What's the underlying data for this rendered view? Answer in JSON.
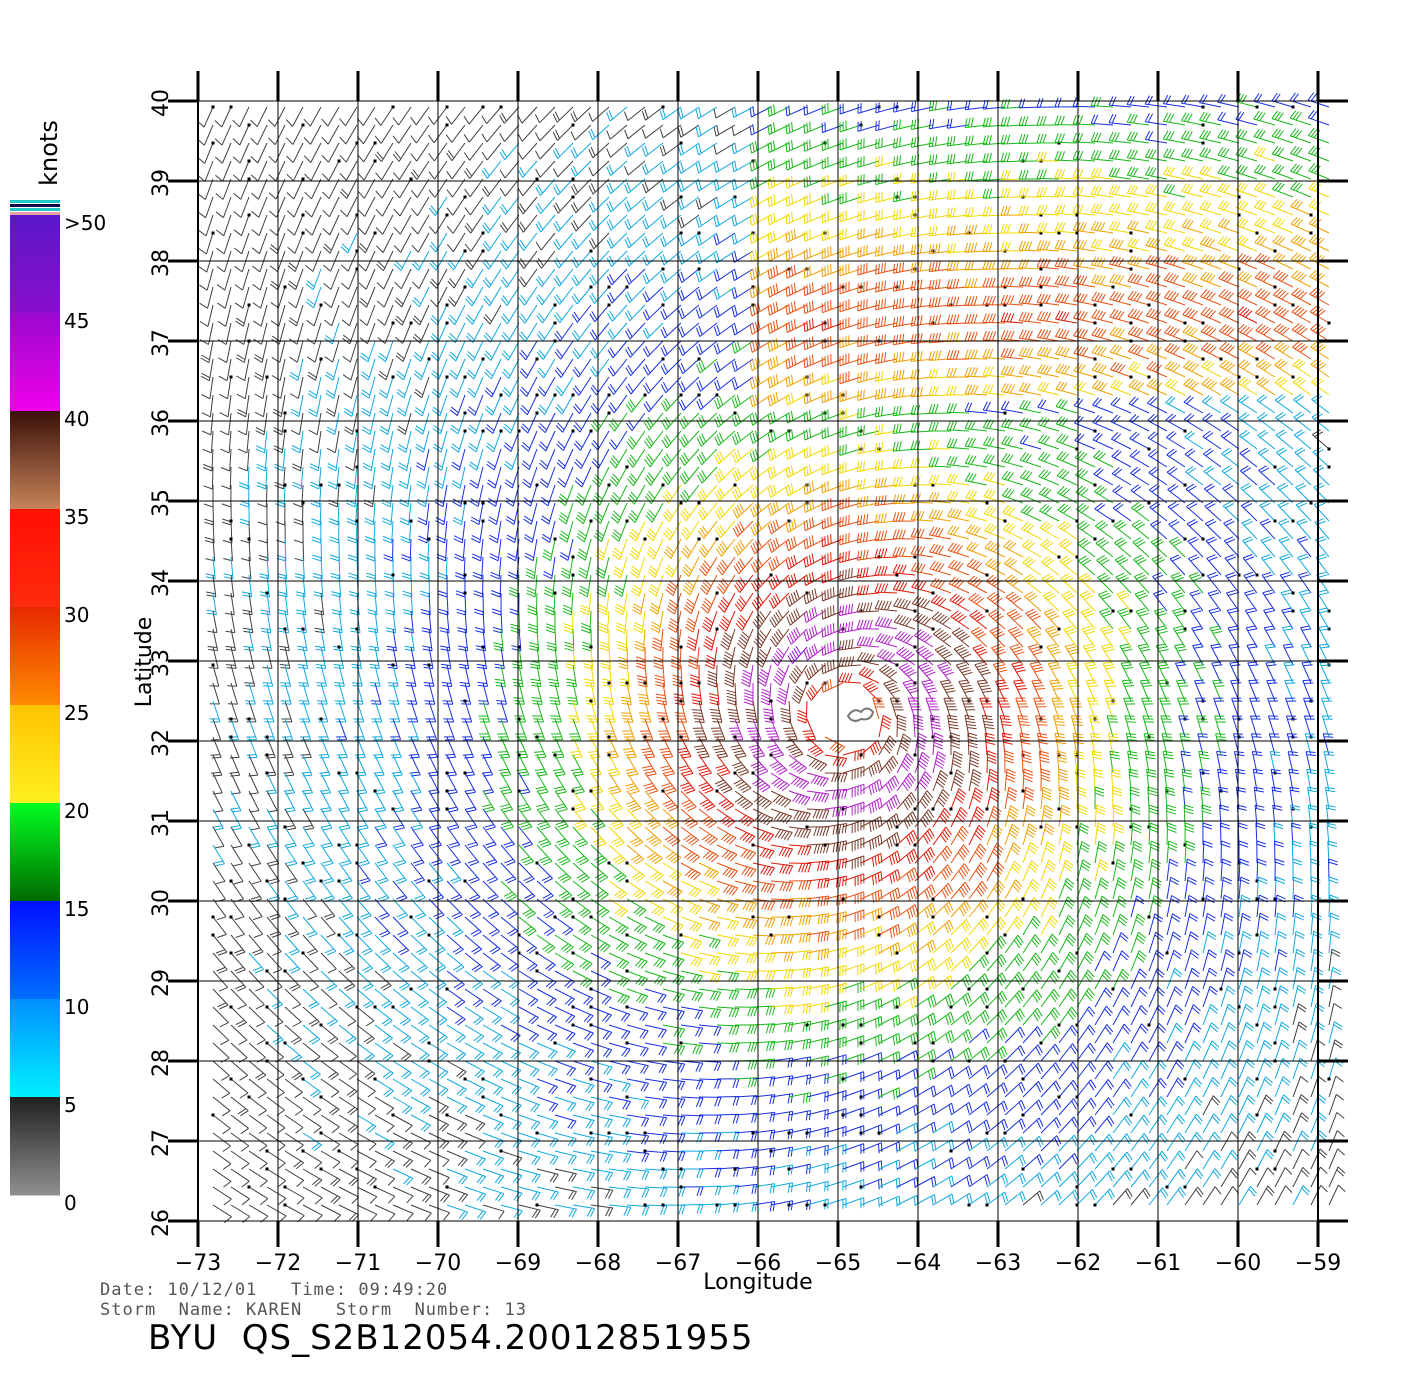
{
  "map": {
    "xlabel": "Longitude",
    "ylabel": "Latitude",
    "lon_range": [
      -73,
      -59
    ],
    "lat_range": [
      26,
      40
    ],
    "lon_ticks": [
      "−73",
      "−72",
      "−71",
      "−70",
      "−69",
      "−68",
      "−67",
      "−66",
      "−65",
      "−64",
      "−63",
      "−62",
      "−61",
      "−60",
      "−59"
    ],
    "lat_ticks": [
      "26",
      "27",
      "28",
      "29",
      "30",
      "31",
      "32",
      "33",
      "34",
      "35",
      "36",
      "37",
      "38",
      "39",
      "40"
    ],
    "grid": true,
    "storm_center": {
      "lon": -64.9,
      "lat": 32.3
    },
    "field": "wind barbs colored by speed"
  },
  "colorbar": {
    "unit": "knots",
    "labels": [
      ">50",
      "45",
      "40",
      "35",
      "30",
      "25",
      "20",
      "15",
      "10",
      "5",
      "0"
    ],
    "bands": [
      {
        "from": 45,
        "to": 50,
        "top": "#5a18c8",
        "bottom": "#8a0ecc"
      },
      {
        "from": 40,
        "to": 45,
        "top": "#9a08d0",
        "bottom": "#f000ea"
      },
      {
        "from": 35,
        "to": 40,
        "top": "#3a1008",
        "bottom": "#c8845a"
      },
      {
        "from": 30,
        "to": 35,
        "top": "#ff1000",
        "bottom": "#ff2a10"
      },
      {
        "from": 25,
        "to": 30,
        "top": "#e82800",
        "bottom": "#ff8c00"
      },
      {
        "from": 20,
        "to": 25,
        "top": "#ffc400",
        "bottom": "#fff020"
      },
      {
        "from": 15,
        "to": 20,
        "top": "#00ff20",
        "bottom": "#006a00"
      },
      {
        "from": 10,
        "to": 15,
        "top": "#0010ff",
        "bottom": "#0070ff"
      },
      {
        "from": 5,
        "to": 10,
        "top": "#0090ff",
        "bottom": "#00f0ff"
      },
      {
        "from": 0,
        "to": 5,
        "top": "#202020",
        "bottom": "#909090"
      }
    ]
  },
  "info": {
    "line1": "Date: 10/12/01   Time: 09:49:20",
    "line2": "Storm  Name: KAREN   Storm  Number: 13"
  },
  "product_id": "BYU  QS_S2B12054.20012851955"
}
